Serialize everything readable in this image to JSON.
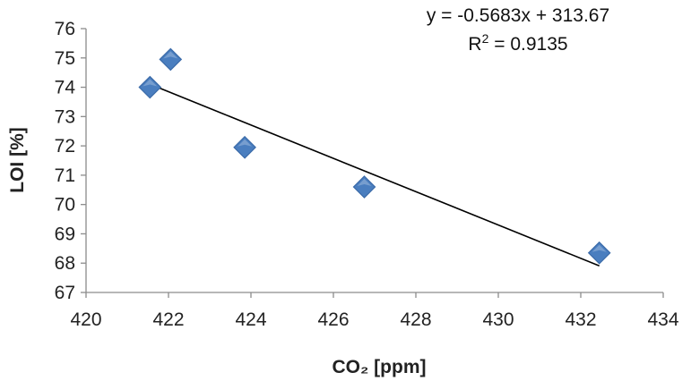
{
  "chart_data": {
    "type": "scatter",
    "title": "",
    "xlabel": "CO₂  [ppm]",
    "ylabel": "LOI [%]",
    "xlim": [
      420,
      434
    ],
    "ylim": [
      67,
      76
    ],
    "xticks": [
      "420",
      "422",
      "424",
      "426",
      "428",
      "430",
      "432",
      "434"
    ],
    "yticks": [
      "67",
      "68",
      "69",
      "70",
      "71",
      "72",
      "73",
      "74",
      "75",
      "76"
    ],
    "grid": false,
    "series": [
      {
        "points": [
          {
            "x": 421.55,
            "y": 74.0
          },
          {
            "x": 422.05,
            "y": 74.95
          },
          {
            "x": 423.85,
            "y": 71.95
          },
          {
            "x": 426.75,
            "y": 70.6
          },
          {
            "x": 432.45,
            "y": 68.35
          }
        ],
        "marker": "diamond",
        "color": "#4a7ebf"
      }
    ],
    "trendline": {
      "type": "linear",
      "slope": -0.5683,
      "intercept": 313.67,
      "x_range": [
        421.55,
        432.45
      ],
      "color": "#000000"
    },
    "annotations": {
      "equation": "y = -0.5683x + 313.67",
      "r2_prefix": "R",
      "r2_sup": "2",
      "r2_value": " = 0.9135"
    }
  }
}
